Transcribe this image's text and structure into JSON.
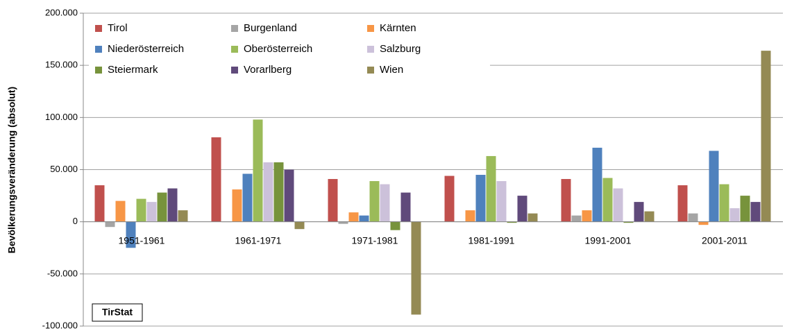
{
  "chart_data": {
    "type": "bar",
    "y_label": "Bevölkerungsveränderung (absolut)",
    "annotation": "TirStat",
    "categories": [
      "1951-1961",
      "1961-1971",
      "1971-1981",
      "1981-1991",
      "1991-2001",
      "2001-2011"
    ],
    "series": [
      {
        "name": "Tirol",
        "color": "#c0504d",
        "values": [
          35000,
          81000,
          41000,
          44000,
          41000,
          35000
        ]
      },
      {
        "name": "Burgenland",
        "color": "#a5a5a5",
        "values": [
          -5000,
          0,
          -2000,
          0,
          6000,
          8000
        ]
      },
      {
        "name": "Kärnten",
        "color": "#f79646",
        "values": [
          20000,
          31000,
          9000,
          11000,
          11000,
          -3000
        ]
      },
      {
        "name": "Niederösterreich",
        "color": "#4f81bd",
        "values": [
          -25000,
          46000,
          6000,
          45000,
          71000,
          68000
        ]
      },
      {
        "name": "Oberösterreich",
        "color": "#9bbb59",
        "values": [
          22000,
          98000,
          39000,
          63000,
          42000,
          36000
        ]
      },
      {
        "name": "Salzburg",
        "color": "#ccc1da",
        "values": [
          19000,
          57000,
          36000,
          39000,
          32000,
          13000
        ]
      },
      {
        "name": "Steiermark",
        "color": "#77933c",
        "values": [
          28000,
          57000,
          -8000,
          -1000,
          -1000,
          25000
        ]
      },
      {
        "name": "Vorarlberg",
        "color": "#604a7b",
        "values": [
          32000,
          50000,
          28000,
          25000,
          19000,
          19000
        ]
      },
      {
        "name": "Wien",
        "color": "#948a54",
        "values": [
          11000,
          -7000,
          -89000,
          8000,
          10000,
          164000
        ]
      }
    ],
    "ylim": [
      -100000,
      200000
    ],
    "yticks": [
      {
        "value": -100000,
        "label": "-100.000"
      },
      {
        "value": -50000,
        "label": "-50.000"
      },
      {
        "value": 0,
        "label": "0"
      },
      {
        "value": 50000,
        "label": "50.000"
      },
      {
        "value": 100000,
        "label": "100.000"
      },
      {
        "value": 150000,
        "label": "150.000"
      },
      {
        "value": 200000,
        "label": "200.000"
      }
    ],
    "grid": true
  }
}
